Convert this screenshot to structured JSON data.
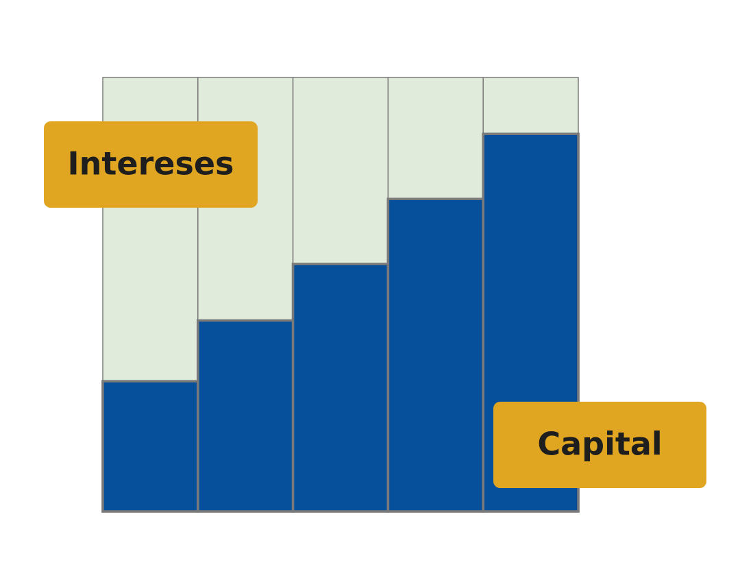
{
  "chart_data": {
    "type": "stacked_bar",
    "categories": [
      null,
      null,
      null,
      null,
      null
    ],
    "series": [
      {
        "name": "Capital",
        "color": "#054f9b",
        "values": [
          30,
          44,
          57,
          72,
          87
        ]
      },
      {
        "name": "Intereses",
        "color": "#e1ebdc",
        "values": [
          70,
          56,
          43,
          28,
          13
        ]
      }
    ],
    "ylim": [
      0,
      100
    ],
    "legend_color": "#e0a621"
  }
}
